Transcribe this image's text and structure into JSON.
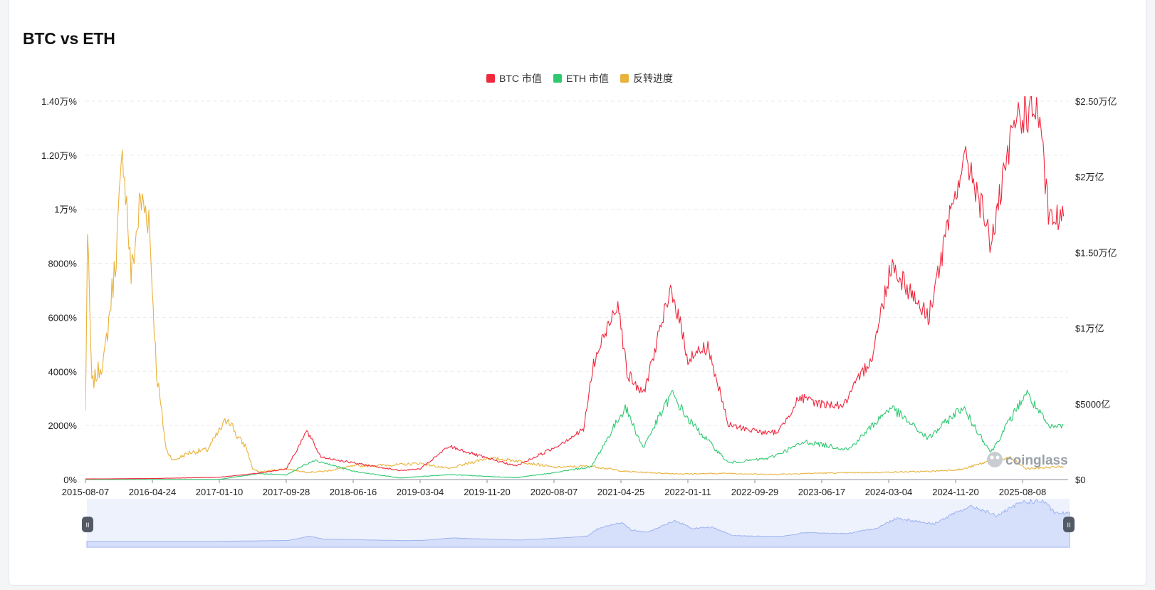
{
  "page": {
    "title": "BTC vs ETH"
  },
  "watermark": {
    "text": "coinglass"
  },
  "slider": {
    "handle_glyph": "II"
  },
  "chart_data": {
    "type": "line",
    "title": "BTC vs ETH",
    "legend": {
      "placement": "top-center",
      "items": [
        {
          "name": "BTC 市值",
          "color": "#f0293e"
        },
        {
          "name": "ETH 市值",
          "color": "#2ec971"
        },
        {
          "name": "反转进度",
          "color": "#e9b23c"
        }
      ]
    },
    "x_range": [
      "2015-08-07",
      "2026-01-15"
    ],
    "x_ticks": [
      "2015-08-07",
      "2016-04-24",
      "2017-01-10",
      "2017-09-28",
      "2018-06-16",
      "2019-03-04",
      "2019-11-20",
      "2020-08-07",
      "2021-04-25",
      "2022-01-11",
      "2022-09-29",
      "2023-06-17",
      "2024-03-04",
      "2024-11-20",
      "2025-08-08"
    ],
    "y_left": {
      "min": 0,
      "max": 14000,
      "unit": "%",
      "ticks": [
        0,
        2000,
        4000,
        6000,
        8000,
        10000,
        12000,
        14000
      ],
      "tick_labels": [
        "0%",
        "2000%",
        "4000%",
        "6000%",
        "8000%",
        "1万%",
        "1.20万%",
        "1.40万%"
      ]
    },
    "y_right": {
      "min": 0,
      "max": 2500,
      "unit": "$B",
      "ticks": [
        0,
        500,
        1000,
        1500,
        2000,
        2500
      ],
      "tick_labels": [
        "$0",
        "$5000亿",
        "$1万亿",
        "$1.50万亿",
        "$2万亿",
        "$2.50万亿"
      ]
    },
    "grid": true,
    "series": [
      {
        "name": "BTC 市值",
        "axis": "right",
        "color": "#f0293e",
        "points": [
          [
            "2015-08-07",
            4
          ],
          [
            "2016-04-24",
            7
          ],
          [
            "2017-01-10",
            15
          ],
          [
            "2017-06-01",
            40
          ],
          [
            "2017-09-28",
            70
          ],
          [
            "2017-12-17",
            320
          ],
          [
            "2018-02-10",
            150
          ],
          [
            "2018-06-16",
            110
          ],
          [
            "2018-12-15",
            60
          ],
          [
            "2019-03-04",
            70
          ],
          [
            "2019-06-26",
            220
          ],
          [
            "2019-11-20",
            140
          ],
          [
            "2020-03-13",
            90
          ],
          [
            "2020-08-07",
            210
          ],
          [
            "2020-11-30",
            330
          ],
          [
            "2021-01-08",
            760
          ],
          [
            "2021-04-13",
            1190
          ],
          [
            "2021-05-19",
            700
          ],
          [
            "2021-07-20",
            560
          ],
          [
            "2021-11-09",
            1270
          ],
          [
            "2022-01-11",
            800
          ],
          [
            "2022-03-30",
            880
          ],
          [
            "2022-06-18",
            360
          ],
          [
            "2022-11-21",
            305
          ],
          [
            "2023-01-01",
            320
          ],
          [
            "2023-03-20",
            540
          ],
          [
            "2023-06-17",
            500
          ],
          [
            "2023-09-11",
            490
          ],
          [
            "2023-12-31",
            820
          ],
          [
            "2024-03-14",
            1430
          ],
          [
            "2024-08-05",
            1070
          ],
          [
            "2024-12-17",
            2100
          ],
          [
            "2025-01-20",
            2050
          ],
          [
            "2025-04-07",
            1560
          ],
          [
            "2025-07-14",
            2400
          ],
          [
            "2025-10-06",
            2450
          ],
          [
            "2025-11-21",
            1700
          ],
          [
            "2026-01-15",
            1740
          ]
        ]
      },
      {
        "name": "ETH 市值",
        "axis": "right",
        "color": "#2ec971",
        "points": [
          [
            "2015-08-07",
            0.5
          ],
          [
            "2016-04-24",
            1
          ],
          [
            "2017-01-10",
            1
          ],
          [
            "2017-06-12",
            40
          ],
          [
            "2017-09-28",
            30
          ],
          [
            "2018-01-13",
            130
          ],
          [
            "2018-06-16",
            55
          ],
          [
            "2018-12-15",
            10
          ],
          [
            "2019-06-26",
            33
          ],
          [
            "2020-03-13",
            12
          ],
          [
            "2020-08-07",
            45
          ],
          [
            "2020-12-31",
            85
          ],
          [
            "2021-05-12",
            480
          ],
          [
            "2021-07-20",
            210
          ],
          [
            "2021-11-09",
            570
          ],
          [
            "2022-01-11",
            400
          ],
          [
            "2022-06-18",
            110
          ],
          [
            "2022-11-21",
            140
          ],
          [
            "2023-04-15",
            250
          ],
          [
            "2023-10-01",
            200
          ],
          [
            "2024-03-12",
            480
          ],
          [
            "2024-08-05",
            270
          ],
          [
            "2024-12-16",
            480
          ],
          [
            "2025-04-07",
            180
          ],
          [
            "2025-08-22",
            575
          ],
          [
            "2025-11-21",
            340
          ],
          [
            "2026-01-15",
            360
          ]
        ]
      },
      {
        "name": "反转进度",
        "axis": "left",
        "color": "#e9b23c",
        "points": [
          [
            "2015-08-07",
            2500
          ],
          [
            "2015-08-15",
            9000
          ],
          [
            "2015-09-01",
            3500
          ],
          [
            "2015-10-20",
            4500
          ],
          [
            "2015-12-01",
            8000
          ],
          [
            "2016-01-02",
            12200
          ],
          [
            "2016-02-01",
            7500
          ],
          [
            "2016-03-08",
            10300
          ],
          [
            "2016-04-10",
            9800
          ],
          [
            "2016-05-10",
            4000
          ],
          [
            "2016-06-17",
            1100
          ],
          [
            "2016-07-15",
            700
          ],
          [
            "2016-09-15",
            1000
          ],
          [
            "2016-11-25",
            1100
          ],
          [
            "2017-01-10",
            1800
          ],
          [
            "2017-02-14",
            2300
          ],
          [
            "2017-03-20",
            1600
          ],
          [
            "2017-04-25",
            1200
          ],
          [
            "2017-05-20",
            400
          ],
          [
            "2017-06-12",
            280
          ],
          [
            "2017-09-28",
            400
          ],
          [
            "2017-12-17",
            270
          ],
          [
            "2018-03-01",
            310
          ],
          [
            "2018-06-16",
            500
          ],
          [
            "2018-12-15",
            550
          ],
          [
            "2019-03-04",
            600
          ],
          [
            "2019-06-26",
            400
          ],
          [
            "2019-11-20",
            800
          ],
          [
            "2020-03-13",
            700
          ],
          [
            "2020-08-07",
            450
          ],
          [
            "2020-12-31",
            500
          ],
          [
            "2021-05-12",
            300
          ],
          [
            "2021-11-09",
            220
          ],
          [
            "2022-01-11",
            210
          ],
          [
            "2022-06-18",
            230
          ],
          [
            "2022-11-21",
            190
          ],
          [
            "2023-06-17",
            240
          ],
          [
            "2023-12-31",
            260
          ],
          [
            "2024-08-05",
            300
          ],
          [
            "2024-12-17",
            380
          ],
          [
            "2025-04-07",
            700
          ],
          [
            "2025-06-20",
            800
          ],
          [
            "2025-08-22",
            400
          ],
          [
            "2025-11-21",
            450
          ],
          [
            "2026-01-15",
            480
          ]
        ]
      }
    ]
  }
}
